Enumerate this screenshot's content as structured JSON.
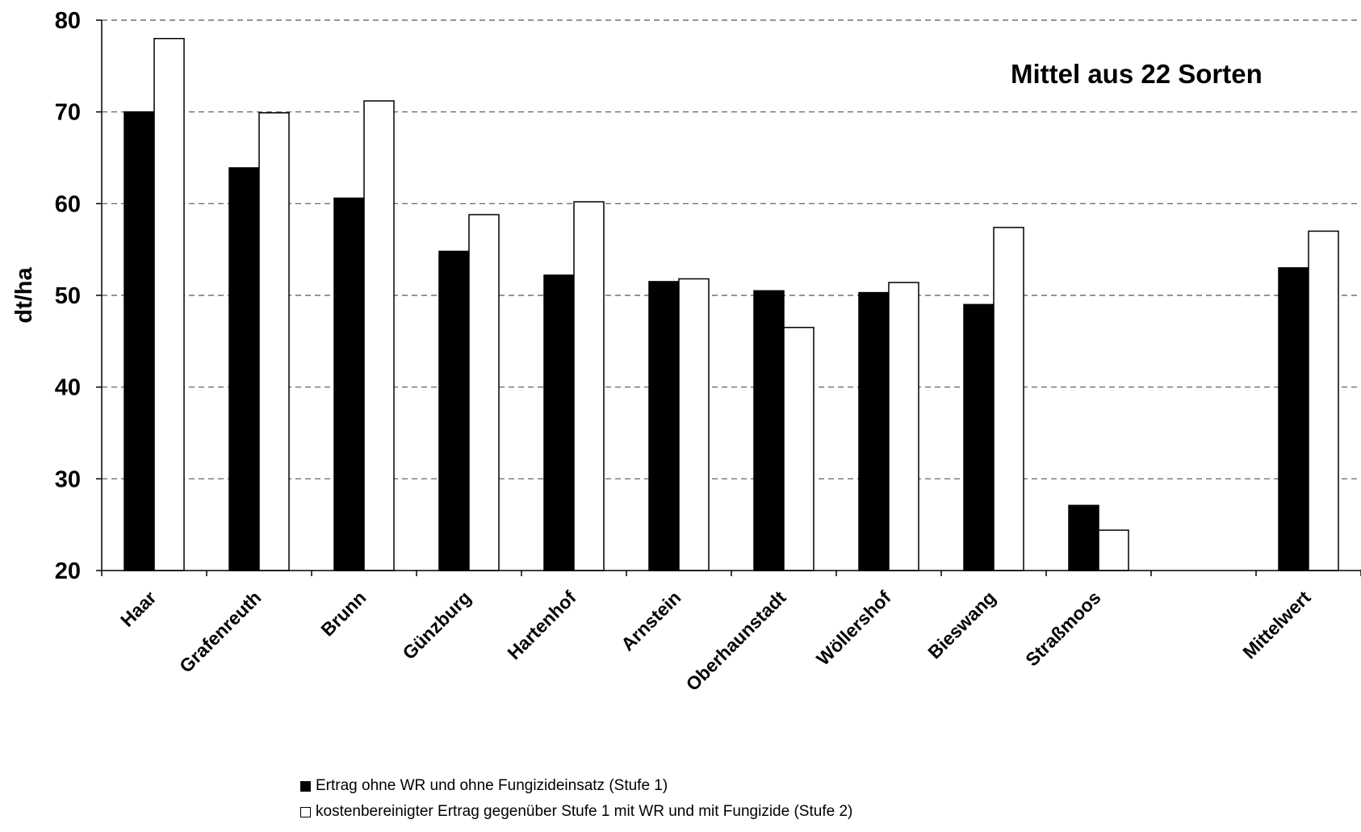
{
  "chart_data": {
    "type": "bar",
    "title": "Mittel aus 22 Sorten",
    "ylabel": "dt/ha",
    "xlabel": "",
    "ylim": [
      20,
      80
    ],
    "yticks": [
      20,
      30,
      40,
      50,
      60,
      70,
      80
    ],
    "grid": "horizontal-dashed",
    "legend_position": "bottom",
    "categories": [
      "Haar",
      "Grafenreuth",
      "Brunn",
      "Günzburg",
      "Hartenhof",
      "Arnstein",
      "Oberhaunstadt",
      "Wöllershof",
      "Bieswang",
      "Straßmoos",
      "",
      "Mittelwert"
    ],
    "series": [
      {
        "name": "Ertrag ohne WR und ohne Fungizideinsatz (Stufe 1)",
        "color": "#000000",
        "values": [
          70.0,
          63.9,
          60.6,
          54.8,
          52.2,
          51.5,
          50.5,
          50.3,
          49.0,
          27.1,
          null,
          53.0
        ]
      },
      {
        "name": "kostenbereinigter Ertrag gegenüber Stufe 1 mit WR und mit Fungizide (Stufe 2)",
        "color": "#ffffff",
        "values": [
          78.0,
          69.9,
          71.2,
          58.8,
          60.2,
          51.8,
          46.5,
          51.4,
          57.4,
          24.4,
          null,
          57.0
        ]
      }
    ]
  }
}
